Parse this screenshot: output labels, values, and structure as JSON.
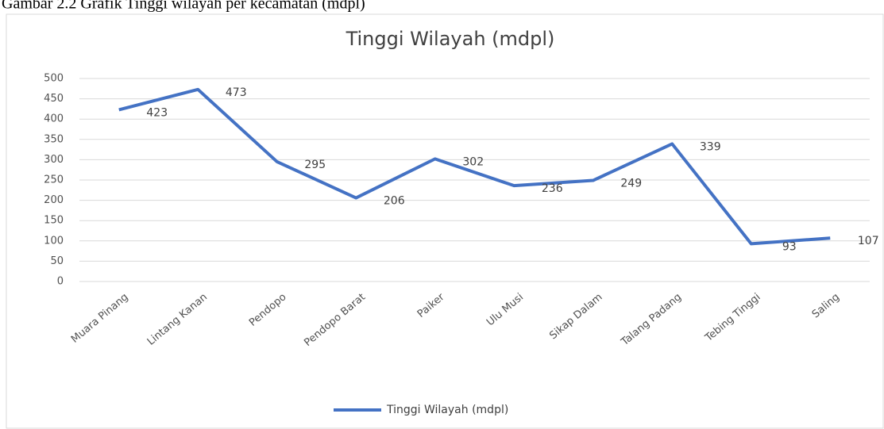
{
  "caption": "Gambar 2.2 Grafik Tinggi wilayah per kecamatan (mdpl)",
  "chart_data": {
    "type": "line",
    "title": "Tinggi Wilayah (mdpl)",
    "categories": [
      "Muara Pinang",
      "Lintang Kanan",
      "Pendopo",
      "Pendopo Barat",
      "Paiker",
      "Ulu Musi",
      "Sikap Dalam",
      "Talang Padang",
      "Tebing Tinggi",
      "Saling"
    ],
    "series": [
      {
        "name": "Tinggi Wilayah (mdpl)",
        "color": "#4472c4",
        "values": [
          423,
          473,
          295,
          206,
          302,
          236,
          249,
          339,
          93,
          107
        ]
      }
    ],
    "ylim": [
      0,
      500
    ],
    "yticks": [
      0,
      50,
      100,
      150,
      200,
      250,
      300,
      350,
      400,
      450,
      500
    ],
    "grid": true,
    "legend": "bottom"
  }
}
